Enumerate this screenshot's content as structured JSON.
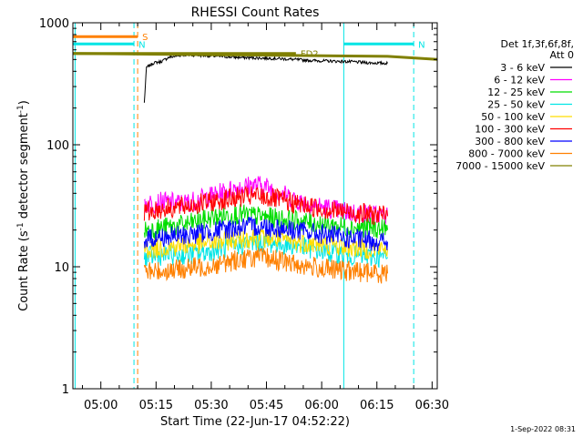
{
  "chart_data": {
    "type": "line",
    "title": "RHESSI Count Rates",
    "xlabel": "Start Time (22-Jun-17 04:52:22)",
    "ylabel_pre": "Count Rate (s",
    "ylabel_sup1": "-1",
    "ylabel_mid": " detector segment",
    "ylabel_sup2": "-1",
    "ylabel_post": ")",
    "yscale": "log",
    "ylim": [
      1,
      1000
    ],
    "xlim_minutes": [
      0,
      99
    ],
    "x_ticks": [
      {
        "label": "05:00",
        "minute": 7.6
      },
      {
        "label": "05:15",
        "minute": 22.6
      },
      {
        "label": "05:30",
        "minute": 37.6
      },
      {
        "label": "05:45",
        "minute": 52.6
      },
      {
        "label": "06:00",
        "minute": 67.6
      },
      {
        "label": "06:15",
        "minute": 82.6
      },
      {
        "label": "06:30",
        "minute": 97.6
      }
    ],
    "y_ticks": [
      {
        "label": "1",
        "value": 1
      },
      {
        "label": "10",
        "value": 10
      },
      {
        "label": "100",
        "value": 100
      },
      {
        "label": "1000",
        "value": 1000
      }
    ],
    "grid": false,
    "legend_position": "right",
    "legend_header": [
      "Det 1f,3f,6f,8f,",
      "Att 0"
    ],
    "series": [
      {
        "name": "3 - 6 keV",
        "color": "#000000",
        "x": [
          19.4,
          20,
          22,
          24,
          26,
          30,
          35,
          40,
          45,
          50,
          55,
          60,
          65,
          70,
          75,
          78,
          80,
          85.5
        ],
        "y": [
          220,
          430,
          470,
          480,
          520,
          545,
          540,
          530,
          520,
          515,
          510,
          500,
          490,
          485,
          480,
          475,
          470,
          465
        ]
      },
      {
        "name": "6 - 12 keV",
        "color": "#ff00ff",
        "x": [
          19.4,
          25,
          30,
          35,
          40,
          45,
          50,
          52,
          55,
          60,
          65,
          70,
          75,
          80,
          85.5
        ],
        "y": [
          33,
          34,
          33,
          36,
          40,
          45,
          47,
          46,
          42,
          36,
          32,
          30,
          28,
          27,
          26
        ]
      },
      {
        "name": "12 - 25 keV",
        "color": "#00dd00",
        "x": [
          19.4,
          25,
          30,
          35,
          40,
          45,
          50,
          55,
          60,
          65,
          70,
          75,
          80,
          85.5
        ],
        "y": [
          20,
          21,
          22,
          24,
          26,
          27,
          26,
          25,
          24,
          23,
          22,
          21,
          21,
          20
        ]
      },
      {
        "name": "25 - 50 keV",
        "color": "#00e5e5",
        "x": [
          19.4,
          25,
          30,
          35,
          40,
          45,
          50,
          55,
          60,
          65,
          70,
          75,
          80,
          85.5
        ],
        "y": [
          12,
          12.5,
          12.5,
          13,
          14,
          15,
          16,
          15.5,
          15,
          14,
          13,
          12.5,
          12,
          12
        ]
      },
      {
        "name": "50 - 100 keV",
        "color": "#ffdd00",
        "x": [
          19.4,
          25,
          30,
          35,
          40,
          45,
          50,
          55,
          60,
          65,
          70,
          75,
          80,
          85.5
        ],
        "y": [
          14,
          14.5,
          15,
          15.5,
          16,
          17,
          17.5,
          17,
          16,
          15.5,
          15,
          14.5,
          14,
          14
        ]
      },
      {
        "name": "100 - 300 keV",
        "color": "#ff0000",
        "x": [
          19.4,
          25,
          30,
          35,
          40,
          45,
          50,
          55,
          60,
          65,
          70,
          75,
          80,
          85.5
        ],
        "y": [
          28,
          30,
          31,
          33,
          35,
          37,
          38,
          36,
          33,
          31,
          29,
          28,
          27,
          26
        ]
      },
      {
        "name": "300 - 800 keV",
        "color": "#0000ff",
        "x": [
          19.4,
          25,
          30,
          35,
          40,
          45,
          50,
          55,
          60,
          65,
          70,
          75,
          80,
          85.5
        ],
        "y": [
          17,
          17.5,
          18,
          19,
          20,
          21,
          21.5,
          21,
          20,
          19,
          18,
          17,
          16.5,
          16
        ]
      },
      {
        "name": "800 - 7000 keV",
        "color": "#ff8000",
        "x": [
          19.4,
          25,
          30,
          35,
          40,
          45,
          50,
          55,
          60,
          65,
          70,
          75,
          80,
          85.5
        ],
        "y": [
          9,
          9.3,
          9.6,
          10,
          10.5,
          11.5,
          12,
          11.5,
          10.5,
          10,
          9.5,
          9.2,
          9,
          8.8
        ]
      },
      {
        "name": "7000 - 15000 keV",
        "color": "#808000",
        "x": [
          0,
          85.5,
          99
        ],
        "y": [
          560,
          530,
          500
        ]
      }
    ],
    "annotations": {
      "flags": [
        {
          "label": "S",
          "color": "#ff8000",
          "y": 770,
          "x_start": 0,
          "x_end": 17.6
        },
        {
          "label": "N",
          "color": "#00e5e5",
          "y": 670,
          "x_start": 0,
          "x_end": 16.6
        },
        {
          "label": "N",
          "color": "#00e5e5",
          "y": 670,
          "x_start": 73.6,
          "x_end": 92.6
        },
        {
          "label": "FD2",
          "color": "#808000",
          "y": 560,
          "x_start": 0,
          "x_end": 60.6
        }
      ],
      "vlines": [
        {
          "minute": 0.6,
          "color": "#00e5e5",
          "style": "solid"
        },
        {
          "minute": 16.6,
          "color": "#00e5e5",
          "style": "dashed"
        },
        {
          "minute": 17.6,
          "color": "#ff8000",
          "style": "dashed"
        },
        {
          "minute": 73.6,
          "color": "#00e5e5",
          "style": "solid"
        },
        {
          "minute": 92.6,
          "color": "#00e5e5",
          "style": "dashed"
        }
      ]
    },
    "footer_date": "1-Sep-2022 08:31"
  }
}
